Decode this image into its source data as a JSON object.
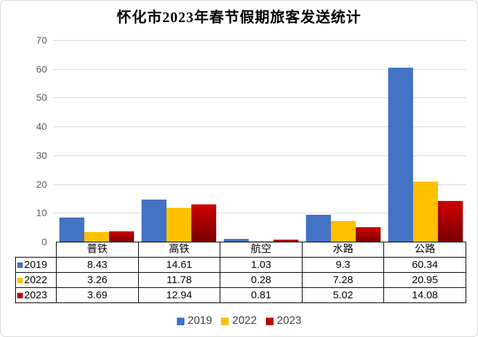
{
  "window": {
    "background": "#FFFFFF",
    "border_color": "#D8D8D8"
  },
  "chart_data": {
    "type": "bar",
    "title": "怀化市2023年春节假期旅客发送统计",
    "categories": [
      "普铁",
      "高铁",
      "航空",
      "水路",
      "公路"
    ],
    "series": [
      {
        "name": "2019",
        "color": "#4472C4",
        "values": [
          8.43,
          14.61,
          1.03,
          9.3,
          60.34
        ]
      },
      {
        "name": "2022",
        "color": "#FFC000",
        "values": [
          3.26,
          11.78,
          0.28,
          7.28,
          20.95
        ]
      },
      {
        "name": "2023",
        "color": "#C00000",
        "gradient_top": "#D10000",
        "gradient_bottom": "#780000",
        "values": [
          3.69,
          12.94,
          0.81,
          5.02,
          14.08
        ]
      }
    ],
    "ylim": [
      0,
      70
    ],
    "yticks": [
      0,
      10,
      20,
      30,
      40,
      50,
      60,
      70
    ],
    "grid": true,
    "legend_position": "bottom",
    "show_data_table": true,
    "colors": {
      "gridline": "#D9D9D9",
      "axis_label": "#595959",
      "legend_text": "#404040",
      "table_border": "#000000"
    }
  }
}
